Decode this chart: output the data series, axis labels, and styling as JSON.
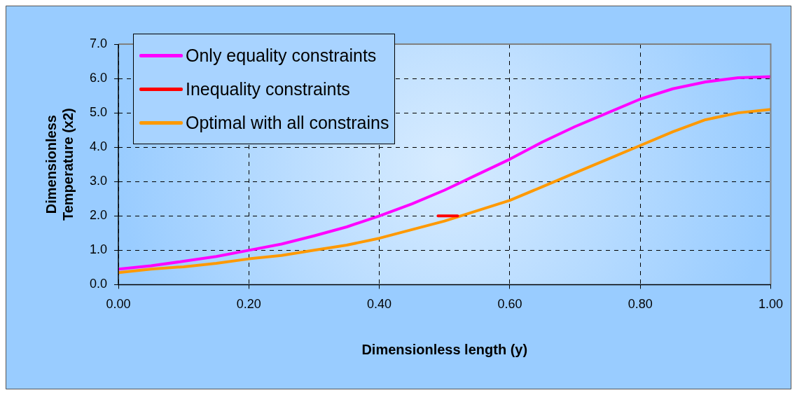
{
  "chart_data": {
    "type": "line",
    "xlabel": "Dimensionless length (y)",
    "ylabel": "Dimensionless\nTemperature (x2)",
    "xlim": [
      0,
      1
    ],
    "xticks": [
      {
        "value": 0,
        "label": "0.00"
      },
      {
        "value": 0.2,
        "label": "0.20"
      },
      {
        "value": 0.4,
        "label": "0.40"
      },
      {
        "value": 0.6,
        "label": "0.60"
      },
      {
        "value": 0.8,
        "label": "0.80"
      },
      {
        "value": 1,
        "label": "1.00"
      }
    ],
    "ylim": [
      0,
      7
    ],
    "yticks": [
      {
        "value": 0,
        "label": "0.0"
      },
      {
        "value": 1,
        "label": "1.0"
      },
      {
        "value": 2,
        "label": "2.0"
      },
      {
        "value": 3,
        "label": "3.0"
      },
      {
        "value": 4,
        "label": "4.0"
      },
      {
        "value": 5,
        "label": "5.0"
      },
      {
        "value": 6,
        "label": "6.0"
      },
      {
        "value": 7,
        "label": "7.0"
      }
    ],
    "grid": true,
    "legend": "top left",
    "marker": "none",
    "line_style": "solid",
    "series": [
      {
        "name": "Only equality constraints",
        "color": "#ff00ff",
        "x": [
          0,
          0.05,
          0.1,
          0.15,
          0.2,
          0.25,
          0.3,
          0.35,
          0.4,
          0.45,
          0.5,
          0.55,
          0.6,
          0.65,
          0.7,
          0.75,
          0.8,
          0.85,
          0.9,
          0.95,
          1
        ],
        "values": [
          0.45,
          0.55,
          0.68,
          0.82,
          1.0,
          1.18,
          1.42,
          1.68,
          2.0,
          2.35,
          2.75,
          3.2,
          3.65,
          4.15,
          4.6,
          5.0,
          5.4,
          5.7,
          5.9,
          6.02,
          6.05
        ]
      },
      {
        "name": "Inequality constraints",
        "color": "#ff0000",
        "x": [
          0.49,
          0.52
        ],
        "values": [
          2.0,
          2.0
        ]
      },
      {
        "name": "Optimal with all constrains",
        "color": "#ff9900",
        "x": [
          0,
          0.05,
          0.1,
          0.15,
          0.2,
          0.25,
          0.3,
          0.35,
          0.4,
          0.45,
          0.5,
          0.55,
          0.6,
          0.65,
          0.7,
          0.75,
          0.8,
          0.85,
          0.9,
          0.95,
          1
        ],
        "values": [
          0.35,
          0.45,
          0.52,
          0.62,
          0.75,
          0.85,
          1.0,
          1.15,
          1.35,
          1.6,
          1.85,
          2.15,
          2.45,
          2.85,
          3.25,
          3.65,
          4.05,
          4.45,
          4.8,
          5.0,
          5.1
        ]
      }
    ]
  }
}
